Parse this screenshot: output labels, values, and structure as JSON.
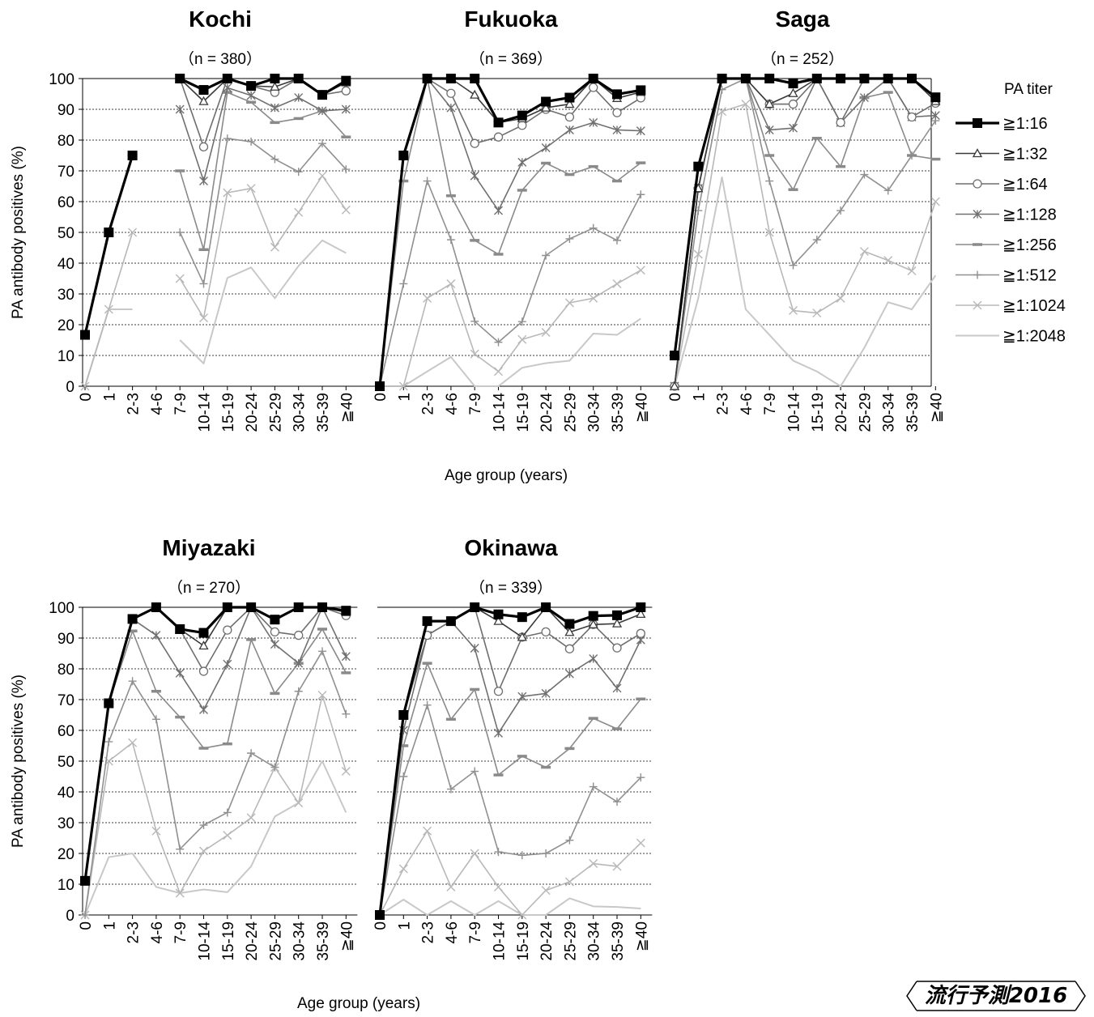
{
  "shared": {
    "ylabel": "PA antibody positives (%)",
    "xlabel": "Age group (years)",
    "legend_title": "PA titer",
    "y_ticks": [
      "0",
      "10",
      "20",
      "30",
      "40",
      "50",
      "60",
      "70",
      "80",
      "90",
      "100"
    ]
  },
  "badge": {
    "text": "流行予測2016"
  },
  "chart_data": [
    {
      "type": "line",
      "title": "Kochi",
      "subtitle": "（n = 380）",
      "categories": [
        "0",
        "1",
        "2-3",
        "4-6",
        "7-9",
        "10-14",
        "15-19",
        "20-24",
        "25-29",
        "30-34",
        "35-39",
        "≧40"
      ],
      "ylim": [
        0,
        100
      ],
      "grid": true,
      "series": [
        {
          "name": "≧1:16",
          "values": [
            16.7,
            50,
            75,
            null,
            100,
            96.3,
            100,
            97.6,
            100,
            100,
            94.7,
            99.3
          ]
        },
        {
          "name": "≧1:32",
          "values": [
            16.7,
            50,
            75,
            null,
            100,
            92.6,
            100,
            97.6,
            97.3,
            100,
            94.7,
            98.7
          ]
        },
        {
          "name": "≧1:64",
          "values": [
            16.7,
            50,
            75,
            null,
            100,
            77.8,
            100,
            97.6,
            95.5,
            100,
            94.7,
            96.0
          ]
        },
        {
          "name": "≧1:128",
          "values": [
            16.7,
            50,
            75,
            null,
            90,
            66.7,
            97,
            94.5,
            90.5,
            93.8,
            89.5,
            90.0
          ]
        },
        {
          "name": "≧1:256",
          "values": [
            16.7,
            50,
            75,
            null,
            70,
            44.4,
            95.5,
            92.3,
            85.7,
            87.0,
            89.5,
            81.0
          ]
        },
        {
          "name": "≧1:512",
          "values": [
            16.7,
            50,
            75,
            null,
            50,
            33.3,
            80.5,
            79.5,
            73.8,
            69.7,
            78.9,
            70.5
          ]
        },
        {
          "name": "≧1:1024",
          "values": [
            0,
            25,
            50,
            null,
            35,
            22.2,
            62.9,
            64.3,
            45.2,
            56.5,
            68.4,
            57.3
          ]
        },
        {
          "name": "≧1:2048",
          "values": [
            0,
            25,
            25,
            null,
            15,
            7.4,
            35.2,
            38.6,
            28.6,
            39.1,
            47.4,
            43.3
          ]
        }
      ]
    },
    {
      "type": "line",
      "title": "Fukuoka",
      "subtitle": "（n = 369）",
      "categories": [
        "0",
        "1",
        "2-3",
        "4-6",
        "7-9",
        "10-14",
        "15-19",
        "20-24",
        "25-29",
        "30-34",
        "35-39",
        "≧40"
      ],
      "ylim": [
        0,
        100
      ],
      "grid": true,
      "series": [
        {
          "name": "≧1:16",
          "values": [
            0,
            75,
            100,
            100,
            100,
            85.7,
            88.0,
            92.5,
            93.8,
            100,
            94.9,
            96.2
          ]
        },
        {
          "name": "≧1:32",
          "values": [
            0,
            75,
            100,
            100,
            94.7,
            85.7,
            87.0,
            90.5,
            91.7,
            100,
            93.6,
            95.6
          ]
        },
        {
          "name": "≧1:64",
          "values": [
            0,
            75,
            100,
            95.2,
            78.9,
            81.0,
            84.8,
            90.0,
            87.5,
            97.1,
            88.9,
            93.7
          ]
        },
        {
          "name": "≧1:128",
          "values": [
            0,
            75,
            100,
            90.5,
            68.4,
            57.1,
            72.8,
            77.5,
            83.3,
            85.7,
            83.3,
            83.0
          ]
        },
        {
          "name": "≧1:256",
          "values": [
            0,
            66.7,
            100,
            61.9,
            47.4,
            42.9,
            63.7,
            72.5,
            68.8,
            71.4,
            66.7,
            72.6
          ]
        },
        {
          "name": "≧1:512",
          "values": [
            0,
            33.3,
            66.7,
            47.6,
            21.1,
            14.3,
            21.0,
            42.5,
            47.9,
            51.4,
            47.4,
            62.3
          ]
        },
        {
          "name": "≧1:1024",
          "values": [
            0,
            0,
            28.6,
            33.3,
            10.5,
            4.8,
            15.2,
            17.5,
            27.1,
            28.6,
            33.3,
            37.7
          ]
        },
        {
          "name": "≧1:2048",
          "values": [
            0,
            0,
            4.8,
            9.5,
            0,
            0,
            6.0,
            7.5,
            8.3,
            17.1,
            16.7,
            22.0
          ]
        }
      ]
    },
    {
      "type": "line",
      "title": "Saga",
      "subtitle": "（n = 252）",
      "categories": [
        "0",
        "1",
        "2-3",
        "4-6",
        "7-9",
        "10-14",
        "15-19",
        "20-24",
        "25-29",
        "30-34",
        "35-39",
        "≧40"
      ],
      "ylim": [
        0,
        100
      ],
      "grid": true,
      "series": [
        {
          "name": "≧1:16",
          "values": [
            10,
            71.4,
            100,
            100,
            100,
            98.4,
            100,
            100,
            100,
            100,
            100,
            93.9
          ]
        },
        {
          "name": "≧1:32",
          "values": [
            0,
            64.3,
            100,
            100,
            91.7,
            95.2,
            100,
            100,
            100,
            100,
            100,
            92.6
          ]
        },
        {
          "name": "≧1:64",
          "values": [
            0,
            64.3,
            100,
            100,
            91.7,
            91.7,
            100,
            85.7,
            100,
            100,
            87.5,
            92.0
          ]
        },
        {
          "name": "≧1:128",
          "values": [
            0,
            64.3,
            100,
            100,
            83.3,
            83.9,
            100,
            85.7,
            93.8,
            100,
            87.5,
            88.0
          ]
        },
        {
          "name": "≧1:256",
          "values": [
            0,
            64.3,
            100,
            100,
            75,
            63.9,
            80.6,
            71.4,
            93.8,
            95.5,
            75,
            73.8
          ]
        },
        {
          "name": "≧1:512",
          "values": [
            0,
            57.1,
            96.4,
            100,
            66.7,
            39.3,
            47.6,
            57.1,
            68.8,
            63.6,
            75,
            86.3
          ]
        },
        {
          "name": "≧1:1024",
          "values": [
            0,
            42.9,
            89.3,
            91.7,
            50,
            24.6,
            23.8,
            28.6,
            43.8,
            40.9,
            37.5,
            60.0
          ]
        },
        {
          "name": "≧1:2048",
          "values": [
            0,
            28.6,
            67.9,
            25,
            16.7,
            8.3,
            4.8,
            0,
            12.5,
            27.3,
            25,
            36.0
          ]
        }
      ]
    },
    {
      "type": "line",
      "title": "Miyazaki",
      "subtitle": "（n = 270）",
      "categories": [
        "0",
        "1",
        "2-3",
        "4-6",
        "7-9",
        "10-14",
        "15-19",
        "20-24",
        "25-29",
        "30-34",
        "35-39",
        "≧40"
      ],
      "ylim": [
        0,
        100
      ],
      "grid": true,
      "series": [
        {
          "name": "≧1:16",
          "values": [
            11.1,
            68.8,
            96.2,
            100,
            92.9,
            91.7,
            100,
            100,
            96.0,
            100,
            100,
            98.9
          ]
        },
        {
          "name": "≧1:32",
          "values": [
            11.1,
            68.8,
            96.2,
            100,
            92.9,
            87.5,
            100,
            100,
            96.0,
            100,
            100,
            98.4
          ]
        },
        {
          "name": "≧1:64",
          "values": [
            11.1,
            68.8,
            96.2,
            100,
            92.9,
            79.2,
            92.6,
            100,
            92.0,
            90.9,
            100,
            97.3
          ]
        },
        {
          "name": "≧1:128",
          "values": [
            11.1,
            68.8,
            96.2,
            90.9,
            78.6,
            66.7,
            81.5,
            100,
            88.0,
            81.8,
            100,
            84.0
          ]
        },
        {
          "name": "≧1:256",
          "values": [
            11.1,
            68.8,
            92.3,
            72.7,
            64.3,
            54.2,
            55.6,
            89.5,
            72.0,
            81.8,
            92.9,
            78.7
          ]
        },
        {
          "name": "≧1:512",
          "values": [
            0,
            56.3,
            76.0,
            63.6,
            21.4,
            29.2,
            33.3,
            52.6,
            48.0,
            72.7,
            85.7,
            65.3
          ]
        },
        {
          "name": "≧1:1024",
          "values": [
            0,
            50,
            56.0,
            27.3,
            7.1,
            20.8,
            25.9,
            31.6,
            48.0,
            36.4,
            71.4,
            46.7
          ]
        },
        {
          "name": "≧1:2048",
          "values": [
            0,
            18.8,
            20.0,
            9.1,
            7.1,
            8.3,
            7.4,
            15.8,
            32.0,
            36.4,
            50.0,
            33.3
          ]
        }
      ]
    },
    {
      "type": "line",
      "title": "Okinawa",
      "subtitle": "（n = 339）",
      "categories": [
        "0",
        "1",
        "2-3",
        "4-6",
        "7-9",
        "10-14",
        "15-19",
        "20-24",
        "25-29",
        "30-34",
        "35-39",
        "≧40"
      ],
      "ylim": [
        0,
        100
      ],
      "grid": true,
      "series": [
        {
          "name": "≧1:16",
          "values": [
            0,
            65,
            95.5,
            95.5,
            100,
            97.7,
            96.8,
            100,
            94.6,
            97.2,
            97.4,
            100
          ]
        },
        {
          "name": "≧1:32",
          "values": [
            0,
            65,
            95.5,
            95.5,
            100,
            95.5,
            90.3,
            100,
            91.9,
            94.4,
            94.7,
            97.8
          ]
        },
        {
          "name": "≧1:64",
          "values": [
            0,
            65,
            90.9,
            95.5,
            100,
            72.7,
            90.3,
            92.0,
            86.5,
            94.4,
            86.8,
            91.5
          ]
        },
        {
          "name": "≧1:128",
          "values": [
            0,
            60,
            90.9,
            95.5,
            86.7,
            59.1,
            71.0,
            72.0,
            78.4,
            83.3,
            73.7,
            89.4
          ]
        },
        {
          "name": "≧1:256",
          "values": [
            0,
            55,
            81.8,
            63.6,
            73.3,
            45.5,
            51.6,
            48.0,
            54.1,
            63.9,
            60.5,
            70.2
          ]
        },
        {
          "name": "≧1:512",
          "values": [
            0,
            45,
            68.2,
            40.9,
            46.7,
            20.5,
            19.4,
            20.0,
            24.3,
            41.7,
            36.8,
            44.7
          ]
        },
        {
          "name": "≧1:1024",
          "values": [
            0,
            15,
            27.3,
            9.1,
            20.0,
            9.1,
            0,
            8.0,
            10.8,
            16.7,
            15.8,
            23.4
          ]
        },
        {
          "name": "≧1:2048",
          "values": [
            0,
            5,
            0,
            4.5,
            0,
            4.5,
            0,
            0,
            5.4,
            2.8,
            2.6,
            2.1
          ]
        }
      ]
    }
  ]
}
